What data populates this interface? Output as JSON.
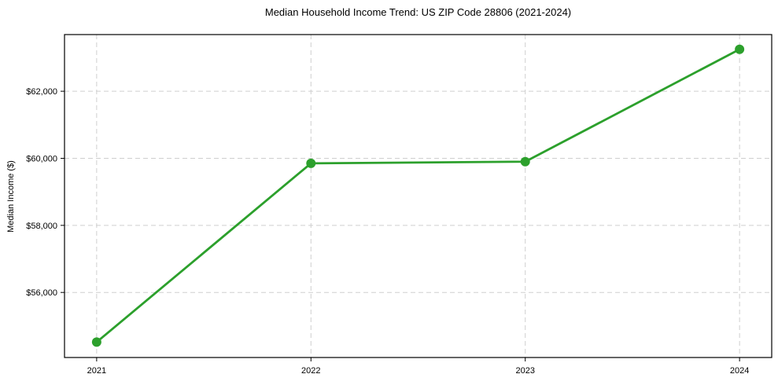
{
  "chart_data": {
    "type": "line",
    "title": "Median Household Income Trend: US ZIP Code 28806 (2021-2024)",
    "xlabel": "",
    "ylabel": "Median Income ($)",
    "categories": [
      "2021",
      "2022",
      "2023",
      "2024"
    ],
    "x": [
      2021,
      2022,
      2023,
      2024
    ],
    "series": [
      {
        "name": "Median Household Income",
        "values": [
          54520,
          59850,
          59900,
          63250
        ]
      }
    ],
    "yticks": [
      56000,
      58000,
      60000,
      62000
    ],
    "yticklabels": [
      "$56,000",
      "$58,000",
      "$60,000",
      "$62,000"
    ],
    "xlim": [
      2020.85,
      2024.15
    ],
    "ylim": [
      54060,
      63690
    ],
    "grid": true,
    "grid_style": "dashed",
    "legend_position": "none",
    "colors": {
      "line": "#2ca02c",
      "marker": "#2ca02c",
      "grid": "#cfcfcf",
      "spine": "#000000",
      "background": "#ffffff"
    }
  }
}
